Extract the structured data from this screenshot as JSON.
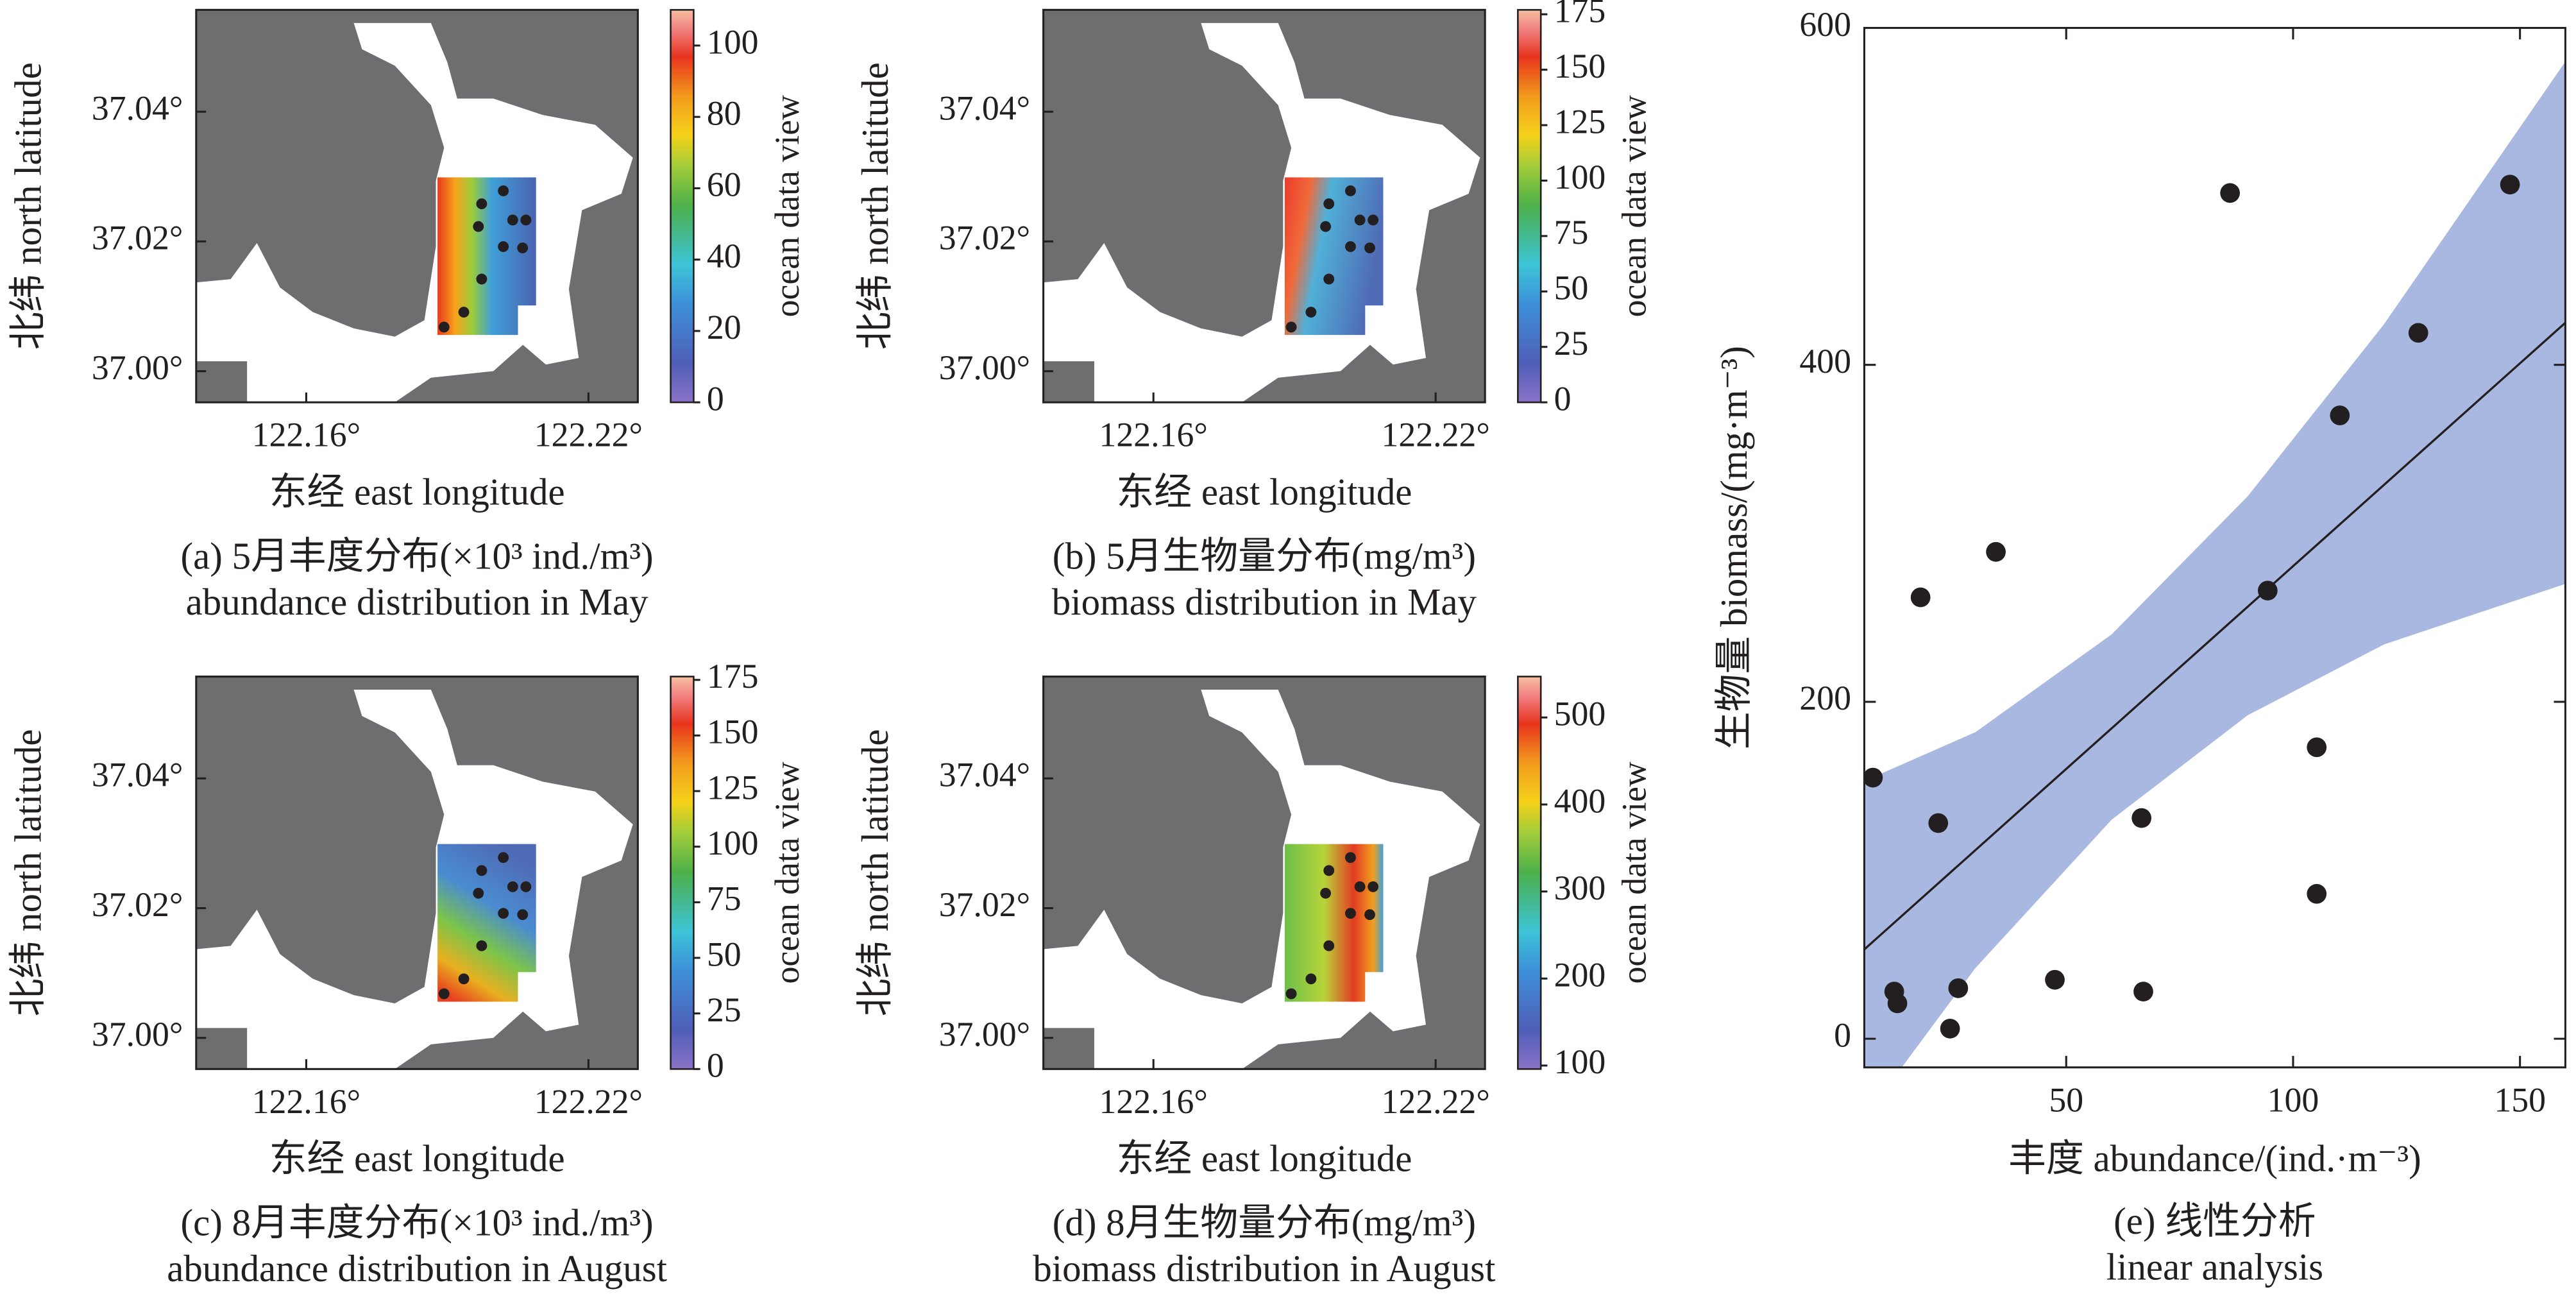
{
  "chart_data": [
    {
      "type": "map",
      "title": "(a) 5月丰度分布(×10³ ind./m³)",
      "subtitle": "abundance distribution in May",
      "x_label": "东经 east longitude",
      "y_label": "北纬 north latitude",
      "colorbar_label": "ocean data view",
      "xlim": [
        122.1366,
        122.2305
      ],
      "ylim": [
        36.9952,
        37.0557
      ],
      "xticks": [
        {
          "value": 122.16,
          "label": "122.16°"
        },
        {
          "value": 122.22,
          "label": "122.22°"
        }
      ],
      "yticks": [
        {
          "value": 37.0,
          "label": "37.00°"
        },
        {
          "value": 37.02,
          "label": "37.02°"
        },
        {
          "value": 37.04,
          "label": "37.04°"
        }
      ],
      "clim": [
        0,
        110
      ],
      "cticks": [
        0,
        20,
        40,
        60,
        80,
        100
      ],
      "stations": {
        "x": [
          122.1973,
          122.2019,
          122.2039,
          122.2067,
          122.1966,
          122.2019,
          122.206,
          122.1973,
          122.1935,
          122.1893
        ],
        "y": [
          37.0258,
          37.0278,
          37.0233,
          37.0233,
          37.0223,
          37.0192,
          37.019,
          37.0142,
          37.0091,
          37.0068
        ]
      }
    },
    {
      "type": "map",
      "title": "(b) 5月生物量分布(mg/m³)",
      "subtitle": "biomass distribution in May",
      "x_label": "东经 east longitude",
      "y_label": "北纬 north latitude",
      "colorbar_label": "ocean data view",
      "xlim": [
        122.1366,
        122.2305
      ],
      "ylim": [
        36.9952,
        37.0557
      ],
      "xticks": [
        {
          "value": 122.16,
          "label": "122.16°"
        },
        {
          "value": 122.22,
          "label": "122.22°"
        }
      ],
      "yticks": [
        {
          "value": 37.0,
          "label": "37.00°"
        },
        {
          "value": 37.02,
          "label": "37.02°"
        },
        {
          "value": 37.04,
          "label": "37.04°"
        }
      ],
      "clim": [
        0,
        177
      ],
      "cticks": [
        0,
        25,
        50,
        75,
        100,
        125,
        150,
        175
      ],
      "stations": {
        "x": [
          122.1973,
          122.2019,
          122.2039,
          122.2067,
          122.1966,
          122.2019,
          122.206,
          122.1973,
          122.1935,
          122.1893
        ],
        "y": [
          37.0258,
          37.0278,
          37.0233,
          37.0233,
          37.0223,
          37.0192,
          37.019,
          37.0142,
          37.0091,
          37.0068
        ]
      }
    },
    {
      "type": "map",
      "title": "(c) 8月丰度分布(×10³ ind./m³)",
      "subtitle": "abundance distribution in August",
      "x_label": "东经 east longitude",
      "y_label": "北纬 north latitude",
      "colorbar_label": "ocean data view",
      "xlim": [
        122.1366,
        122.2305
      ],
      "ylim": [
        36.9952,
        37.0557
      ],
      "xticks": [
        {
          "value": 122.16,
          "label": "122.16°"
        },
        {
          "value": 122.22,
          "label": "122.22°"
        }
      ],
      "yticks": [
        {
          "value": 37.0,
          "label": "37.00°"
        },
        {
          "value": 37.02,
          "label": "37.02°"
        },
        {
          "value": 37.04,
          "label": "37.04°"
        }
      ],
      "clim": [
        0,
        176.5
      ],
      "cticks": [
        0,
        25,
        50,
        75,
        100,
        125,
        150,
        175
      ],
      "stations": {
        "x": [
          122.1973,
          122.2019,
          122.2039,
          122.2067,
          122.1966,
          122.2019,
          122.206,
          122.1973,
          122.1935,
          122.1893
        ],
        "y": [
          37.0258,
          37.0278,
          37.0233,
          37.0233,
          37.0223,
          37.0192,
          37.019,
          37.0142,
          37.0091,
          37.0068
        ]
      }
    },
    {
      "type": "map",
      "title": "(d) 8月生物量分布(mg/m³)",
      "subtitle": "biomass distribution in August",
      "x_label": "东经 east longitude",
      "y_label": "北纬 north latitude",
      "colorbar_label": "ocean data view",
      "xlim": [
        122.1366,
        122.2305
      ],
      "ylim": [
        36.9952,
        37.0557
      ],
      "xticks": [
        {
          "value": 122.16,
          "label": "122.16°"
        },
        {
          "value": 122.22,
          "label": "122.22°"
        }
      ],
      "yticks": [
        {
          "value": 37.0,
          "label": "37.00°"
        },
        {
          "value": 37.02,
          "label": "37.02°"
        },
        {
          "value": 37.04,
          "label": "37.04°"
        }
      ],
      "clim": [
        96,
        547
      ],
      "cticks": [
        100,
        200,
        300,
        400,
        500
      ],
      "stations": {
        "x": [
          122.1973,
          122.2019,
          122.2039,
          122.2067,
          122.1966,
          122.2019,
          122.206,
          122.1973,
          122.1935,
          122.1893
        ],
        "y": [
          37.0258,
          37.0278,
          37.0233,
          37.0233,
          37.0223,
          37.0192,
          37.019,
          37.0142,
          37.0091,
          37.0068
        ]
      }
    },
    {
      "type": "scatter",
      "title": "(e) 线性分析",
      "subtitle": "linear analysis",
      "x_label": "丰度 abundance/(ind.·m⁻³)",
      "y_label": "生物量 biomass/(mg·m⁻³)",
      "xlim": [
        5.5,
        160
      ],
      "ylim": [
        -17,
        600
      ],
      "xticks": [
        50,
        100,
        150
      ],
      "yticks": [
        0,
        200,
        400,
        600
      ],
      "color": "#231f20",
      "x": [
        7.4,
        12.1,
        12.8,
        17.9,
        21.8,
        24.4,
        26.2,
        34.5,
        47.5,
        66.6,
        67,
        86.1,
        94.4,
        105.2,
        105.2,
        110.3,
        127.6,
        147.8
      ],
      "y": [
        155,
        28,
        21,
        262,
        128,
        6,
        30,
        289,
        35,
        131,
        28,
        502,
        266,
        173,
        86,
        370,
        419,
        507
      ],
      "fit": {
        "x": [
          5.5,
          160
        ],
        "y": [
          53,
          425
        ],
        "color": "#231f20"
      },
      "band": {
        "x": [
          5.5,
          30,
          60,
          90,
          120,
          160
        ],
        "lower": [
          -47,
          42,
          130,
          192,
          234,
          270
        ],
        "upper": [
          153,
          182,
          240,
          322,
          424,
          580
        ],
        "color": "#a9b8e0"
      }
    }
  ]
}
